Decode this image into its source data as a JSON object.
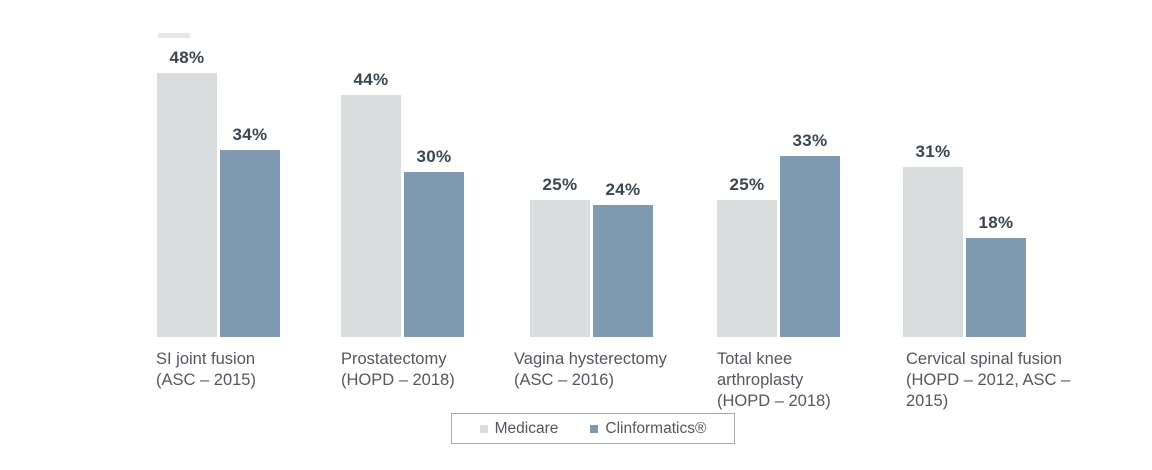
{
  "chart_data": {
    "type": "bar",
    "title": "",
    "xlabel": "",
    "ylabel": "",
    "ylim": [
      0,
      52
    ],
    "grid": false,
    "axes_visible": false,
    "legend_position": "bottom-center",
    "value_label_format": "percent",
    "categories": [
      "SI joint fusion (ASC – 2015)",
      "Prostatectomy (HOPD – 2018)",
      "Vagina hysterectomy (ASC – 2016)",
      "Total knee arthroplasty (HOPD – 2018)",
      "Cervical spinal fusion (HOPD – 2012, ASC – 2015)"
    ],
    "series": [
      {
        "name": "Medicare",
        "color": "#d9dcdd",
        "values": [
          48,
          44,
          25,
          25,
          31
        ],
        "labels": [
          "48%",
          "44%",
          "25%",
          "25%",
          "31%"
        ]
      },
      {
        "name": "Clinformatics®",
        "color": "#7f9ab0",
        "values": [
          34,
          30,
          24,
          33,
          18
        ],
        "labels": [
          "34%",
          "30%",
          "24%",
          "33%",
          "18%"
        ]
      }
    ]
  }
}
